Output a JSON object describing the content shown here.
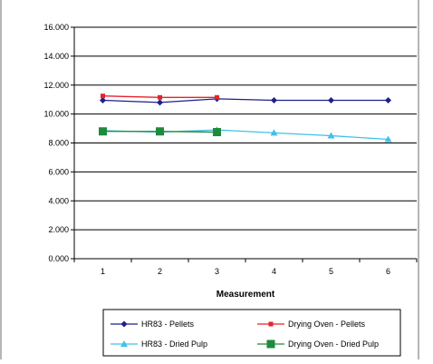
{
  "chart_data": {
    "type": "line",
    "title": "",
    "xlabel": "Measurement",
    "ylabel": "",
    "categories": [
      "1",
      "2",
      "3",
      "4",
      "5",
      "6"
    ],
    "ylim": [
      0,
      16
    ],
    "yticks": [
      "0.000",
      "2.000",
      "4.000",
      "6.000",
      "8.000",
      "10.000",
      "12.000",
      "14.000",
      "16.000"
    ],
    "grid": "horizontal",
    "legend_position": "bottom",
    "series": [
      {
        "name": "HR83 - Pellets",
        "color": "#1f1f8c",
        "marker": "diamond",
        "values": [
          10.95,
          10.8,
          11.05,
          10.95,
          10.95,
          10.95
        ]
      },
      {
        "name": "Drying Oven - Pellets",
        "color": "#e8222a",
        "marker": "square-small",
        "values": [
          11.25,
          11.15,
          11.15,
          null,
          null,
          null
        ]
      },
      {
        "name": "HR83 - Dried Pulp",
        "color": "#3fc1e8",
        "marker": "triangle",
        "values": [
          8.85,
          8.75,
          8.9,
          8.7,
          8.5,
          8.25
        ]
      },
      {
        "name": "Drying Oven - Dried Pulp",
        "color": "#1e8a3c",
        "marker": "square",
        "values": [
          8.8,
          8.8,
          8.75,
          null,
          null,
          null
        ]
      }
    ]
  }
}
